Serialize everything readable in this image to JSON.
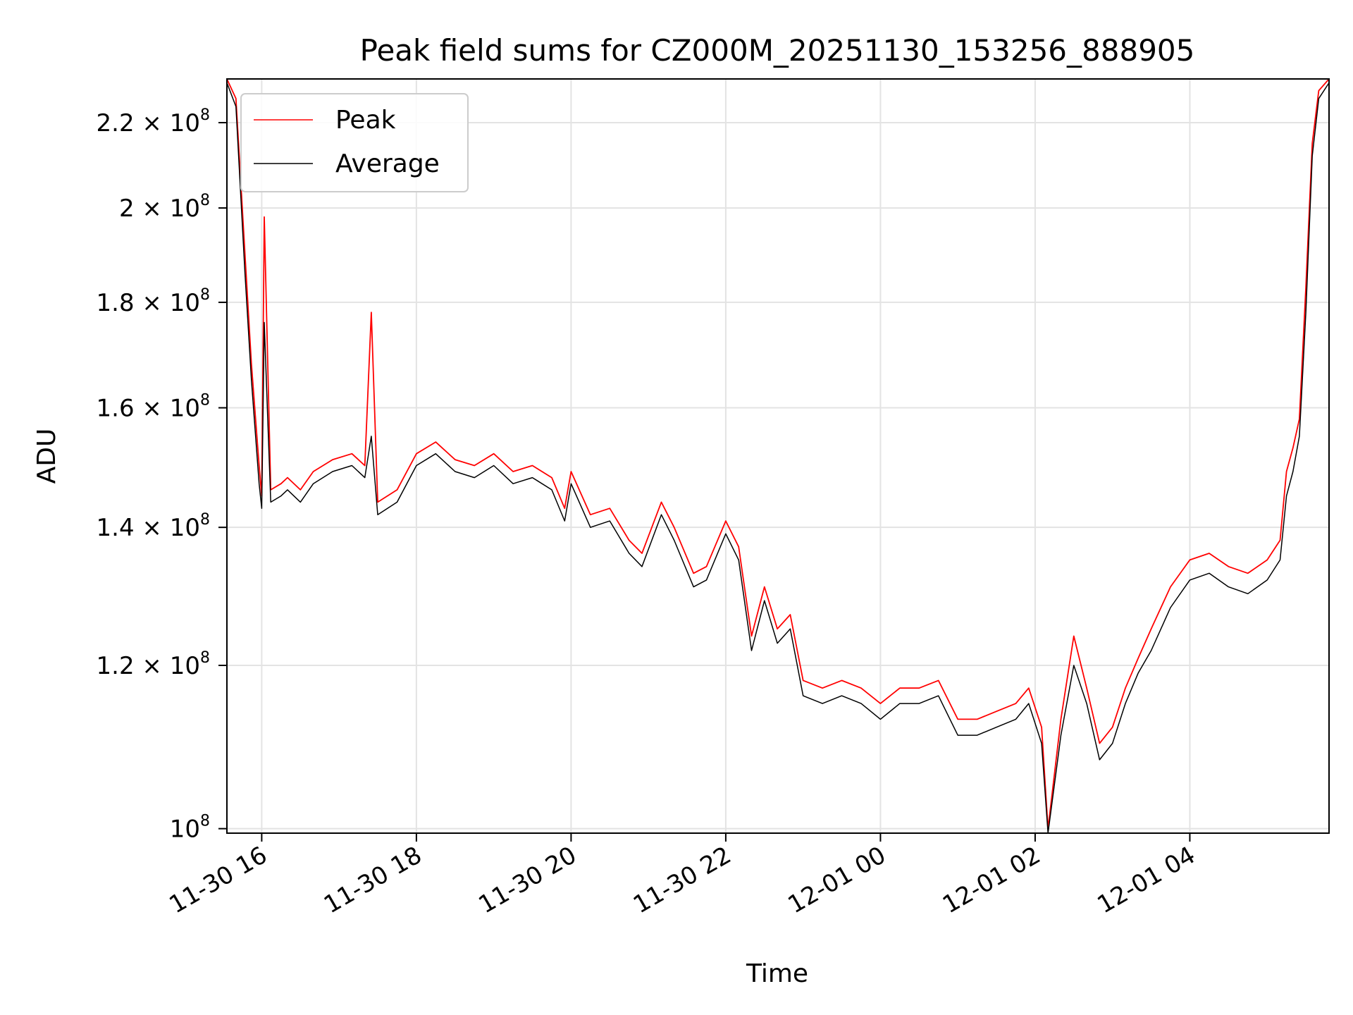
{
  "chart_data": {
    "type": "line",
    "title": "Peak field sums for CZ000M_20251130_153256_888905",
    "xlabel": "Time",
    "ylabel": "ADU",
    "yscale": "log",
    "grid": true,
    "legend_position": "upper-left",
    "xlim": [
      "2025-11-30 15:33",
      "2025-12-01 05:48"
    ],
    "ylim": [
      99500000,
      231000000
    ],
    "x_ticks": [
      {
        "value": "2025-11-30 16:00",
        "label": "11-30 16"
      },
      {
        "value": "2025-11-30 18:00",
        "label": "11-30 18"
      },
      {
        "value": "2025-11-30 20:00",
        "label": "11-30 20"
      },
      {
        "value": "2025-11-30 22:00",
        "label": "11-30 22"
      },
      {
        "value": "2025-12-01 00:00",
        "label": "12-01 00"
      },
      {
        "value": "2025-12-01 02:00",
        "label": "12-01 02"
      },
      {
        "value": "2025-12-01 04:00",
        "label": "12-01 04"
      }
    ],
    "y_ticks": [
      {
        "value": 100000000,
        "mantissa": "",
        "exp": "8"
      },
      {
        "value": 120000000,
        "mantissa": "1.2",
        "exp": "8"
      },
      {
        "value": 140000000,
        "mantissa": "1.4",
        "exp": "8"
      },
      {
        "value": 160000000,
        "mantissa": "1.6",
        "exp": "8"
      },
      {
        "value": 180000000,
        "mantissa": "1.8",
        "exp": "8"
      },
      {
        "value": 200000000,
        "mantissa": "2",
        "exp": "8"
      },
      {
        "value": 220000000,
        "mantissa": "2.2",
        "exp": "8"
      }
    ],
    "series": [
      {
        "name": "Peak",
        "color": "#ff0000",
        "x": [
          "2025-11-30 15:33",
          "2025-11-30 15:40",
          "2025-11-30 15:47",
          "2025-11-30 15:52",
          "2025-11-30 15:58",
          "2025-11-30 16:00",
          "2025-11-30 16:02",
          "2025-11-30 16:07",
          "2025-11-30 16:15",
          "2025-11-30 16:20",
          "2025-11-30 16:30",
          "2025-11-30 16:40",
          "2025-11-30 16:55",
          "2025-11-30 17:10",
          "2025-11-30 17:20",
          "2025-11-30 17:25",
          "2025-11-30 17:30",
          "2025-11-30 17:45",
          "2025-11-30 18:00",
          "2025-11-30 18:15",
          "2025-11-30 18:30",
          "2025-11-30 18:45",
          "2025-11-30 19:00",
          "2025-11-30 19:15",
          "2025-11-30 19:30",
          "2025-11-30 19:45",
          "2025-11-30 19:55",
          "2025-11-30 20:00",
          "2025-11-30 20:15",
          "2025-11-30 20:30",
          "2025-11-30 20:45",
          "2025-11-30 20:55",
          "2025-11-30 21:10",
          "2025-11-30 21:20",
          "2025-11-30 21:35",
          "2025-11-30 21:45",
          "2025-11-30 22:00",
          "2025-11-30 22:10",
          "2025-11-30 22:20",
          "2025-11-30 22:30",
          "2025-11-30 22:40",
          "2025-11-30 22:50",
          "2025-11-30 23:00",
          "2025-11-30 23:15",
          "2025-11-30 23:30",
          "2025-11-30 23:45",
          "2025-12-01 00:00",
          "2025-12-01 00:15",
          "2025-12-01 00:30",
          "2025-12-01 00:45",
          "2025-12-01 01:00",
          "2025-12-01 01:15",
          "2025-12-01 01:30",
          "2025-12-01 01:45",
          "2025-12-01 01:55",
          "2025-12-01 02:05",
          "2025-12-01 02:10",
          "2025-12-01 02:20",
          "2025-12-01 02:30",
          "2025-12-01 02:40",
          "2025-12-01 02:50",
          "2025-12-01 03:00",
          "2025-12-01 03:10",
          "2025-12-01 03:20",
          "2025-12-01 03:30",
          "2025-12-01 03:45",
          "2025-12-01 04:00",
          "2025-12-01 04:15",
          "2025-12-01 04:30",
          "2025-12-01 04:45",
          "2025-12-01 05:00",
          "2025-12-01 05:10",
          "2025-12-01 05:15",
          "2025-12-01 05:20",
          "2025-12-01 05:25",
          "2025-12-01 05:30",
          "2025-12-01 05:35",
          "2025-12-01 05:40",
          "2025-12-01 05:48"
        ],
        "y": [
          231000000,
          226000000,
          190000000,
          168000000,
          150000000,
          145000000,
          198000000,
          146000000,
          147000000,
          148000000,
          146000000,
          149000000,
          151000000,
          152000000,
          150000000,
          178000000,
          144000000,
          146000000,
          152000000,
          154000000,
          151000000,
          150000000,
          152000000,
          149000000,
          150000000,
          148000000,
          143000000,
          149000000,
          142000000,
          143000000,
          138000000,
          136000000,
          144000000,
          140000000,
          133000000,
          134000000,
          141000000,
          137000000,
          124000000,
          131000000,
          125000000,
          127000000,
          118000000,
          117000000,
          118000000,
          117000000,
          115000000,
          117000000,
          117000000,
          118000000,
          113000000,
          113000000,
          114000000,
          115000000,
          117000000,
          112000000,
          100000000,
          113000000,
          124000000,
          117000000,
          110000000,
          112000000,
          117000000,
          121000000,
          125000000,
          131000000,
          135000000,
          136000000,
          134000000,
          133000000,
          135000000,
          138000000,
          149000000,
          153000000,
          158000000,
          183000000,
          215000000,
          228000000,
          231000000
        ]
      },
      {
        "name": "Average",
        "color": "#000000",
        "x": [
          "2025-11-30 15:33",
          "2025-11-30 15:40",
          "2025-11-30 15:47",
          "2025-11-30 15:52",
          "2025-11-30 15:58",
          "2025-11-30 16:00",
          "2025-11-30 16:02",
          "2025-11-30 16:07",
          "2025-11-30 16:15",
          "2025-11-30 16:20",
          "2025-11-30 16:30",
          "2025-11-30 16:40",
          "2025-11-30 16:55",
          "2025-11-30 17:10",
          "2025-11-30 17:20",
          "2025-11-30 17:25",
          "2025-11-30 17:30",
          "2025-11-30 17:45",
          "2025-11-30 18:00",
          "2025-11-30 18:15",
          "2025-11-30 18:30",
          "2025-11-30 18:45",
          "2025-11-30 19:00",
          "2025-11-30 19:15",
          "2025-11-30 19:30",
          "2025-11-30 19:45",
          "2025-11-30 19:55",
          "2025-11-30 20:00",
          "2025-11-30 20:15",
          "2025-11-30 20:30",
          "2025-11-30 20:45",
          "2025-11-30 20:55",
          "2025-11-30 21:10",
          "2025-11-30 21:20",
          "2025-11-30 21:35",
          "2025-11-30 21:45",
          "2025-11-30 22:00",
          "2025-11-30 22:10",
          "2025-11-30 22:20",
          "2025-11-30 22:30",
          "2025-11-30 22:40",
          "2025-11-30 22:50",
          "2025-11-30 23:00",
          "2025-11-30 23:15",
          "2025-11-30 23:30",
          "2025-11-30 23:45",
          "2025-12-01 00:00",
          "2025-12-01 00:15",
          "2025-12-01 00:30",
          "2025-12-01 00:45",
          "2025-12-01 01:00",
          "2025-12-01 01:15",
          "2025-12-01 01:30",
          "2025-12-01 01:45",
          "2025-12-01 01:55",
          "2025-12-01 02:05",
          "2025-12-01 02:10",
          "2025-12-01 02:20",
          "2025-12-01 02:30",
          "2025-12-01 02:40",
          "2025-12-01 02:50",
          "2025-12-01 03:00",
          "2025-12-01 03:10",
          "2025-12-01 03:20",
          "2025-12-01 03:30",
          "2025-12-01 03:45",
          "2025-12-01 04:00",
          "2025-12-01 04:15",
          "2025-12-01 04:30",
          "2025-12-01 04:45",
          "2025-12-01 05:00",
          "2025-12-01 05:10",
          "2025-12-01 05:15",
          "2025-12-01 05:20",
          "2025-12-01 05:25",
          "2025-12-01 05:30",
          "2025-12-01 05:35",
          "2025-12-01 05:40",
          "2025-12-01 05:48"
        ],
        "y": [
          230000000,
          224000000,
          186000000,
          165000000,
          147000000,
          143000000,
          176000000,
          144000000,
          145000000,
          146000000,
          144000000,
          147000000,
          149000000,
          150000000,
          148000000,
          155000000,
          142000000,
          144000000,
          150000000,
          152000000,
          149000000,
          148000000,
          150000000,
          147000000,
          148000000,
          146000000,
          141000000,
          147000000,
          140000000,
          141000000,
          136000000,
          134000000,
          142000000,
          138000000,
          131000000,
          132000000,
          139000000,
          135000000,
          122000000,
          129000000,
          123000000,
          125000000,
          116000000,
          115000000,
          116000000,
          115000000,
          113000000,
          115000000,
          115000000,
          116000000,
          111000000,
          111000000,
          112000000,
          113000000,
          115000000,
          110000000,
          99500000,
          111000000,
          120000000,
          115000000,
          108000000,
          110000000,
          115000000,
          119000000,
          122000000,
          128000000,
          132000000,
          133000000,
          131000000,
          130000000,
          132000000,
          135000000,
          145000000,
          149000000,
          155000000,
          178000000,
          212000000,
          226000000,
          230000000
        ]
      }
    ]
  }
}
